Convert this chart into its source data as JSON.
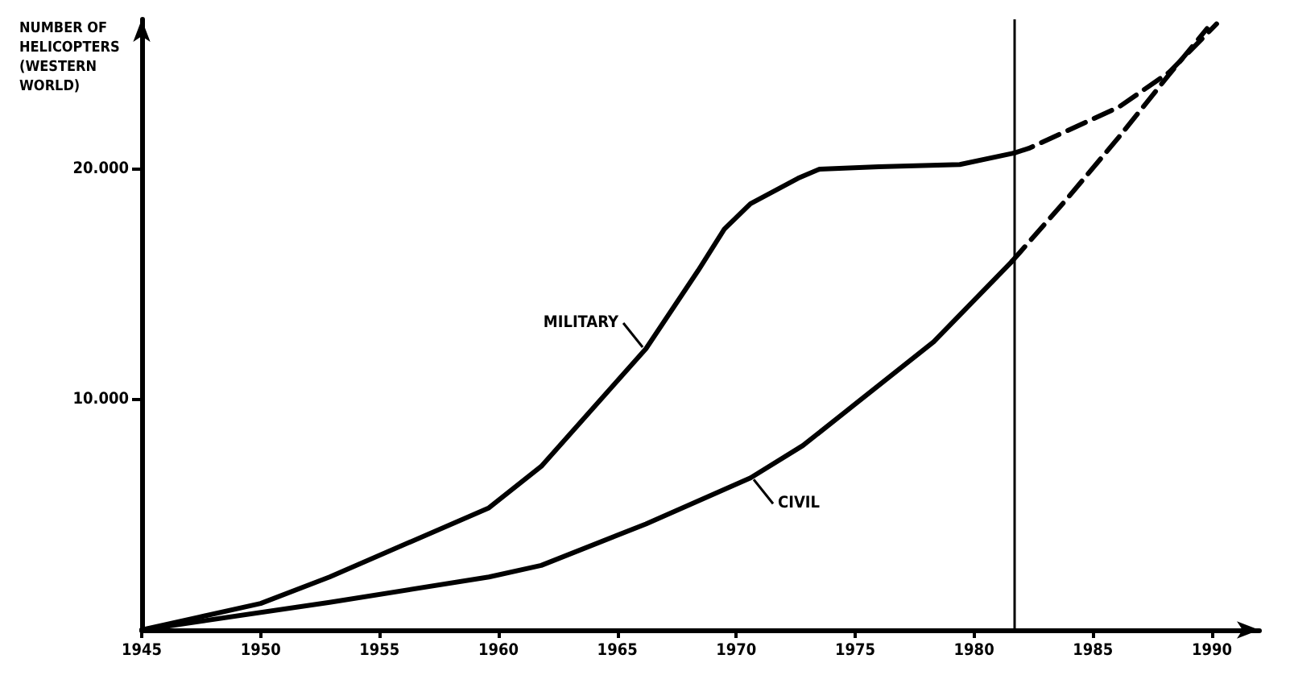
{
  "chart_data": {
    "type": "line",
    "ylabel": "NUMBER OF\nHELICOPTERS\n(WESTERN\nWORLD)",
    "xlim": [
      1945,
      1992
    ],
    "xticks": [
      1945,
      1950,
      1955,
      1960,
      1965,
      1970,
      1975,
      1980,
      1985,
      1990
    ],
    "ylim": [
      0,
      26500
    ],
    "yticks": [
      {
        "value": 10000,
        "label": "10.000"
      },
      {
        "value": 20000,
        "label": "20.000"
      }
    ],
    "grid": false,
    "legend": false,
    "marker": "none",
    "series": [
      {
        "name": "MILITARY",
        "color": "#000000",
        "line_style": "solid",
        "x": [
          1945,
          1950,
          1952.9,
          1959.6,
          1961.8,
          1966.2,
          1968.4,
          1969.5,
          1970.6,
          1972.6,
          1973.5,
          1976,
          1979.4,
          1981.7
        ],
        "values": [
          0,
          1150,
          2300,
          5300,
          7100,
          12200,
          15600,
          17400,
          18500,
          19600,
          20000,
          20100,
          20200,
          20700
        ]
      },
      {
        "color": "#000000",
        "line_style": "dashed",
        "x": [
          1981.7,
          1982.3,
          1986.1,
          1988.2,
          1990.2
        ],
        "values": [
          20700,
          20900,
          22700,
          24200,
          26300
        ]
      },
      {
        "name": "CIVIL",
        "color": "#000000",
        "line_style": "solid",
        "x": [
          1945,
          1952.9,
          1959.6,
          1961.8,
          1966.2,
          1970.6,
          1972.8,
          1975,
          1978.3,
          1981.6
        ],
        "values": [
          0,
          1200,
          2300,
          2800,
          4600,
          6600,
          8000,
          9800,
          12500,
          16000
        ]
      },
      {
        "color": "#000000",
        "line_style": "dashed",
        "x": [
          1981.6,
          1983.9,
          1986.1,
          1988.2,
          1989.8
        ],
        "values": [
          16000,
          18700,
          21400,
          24100,
          26100
        ]
      }
    ],
    "ref_lines": [
      {
        "axis": "x",
        "value": 1981.7,
        "color": "#000000"
      }
    ]
  }
}
